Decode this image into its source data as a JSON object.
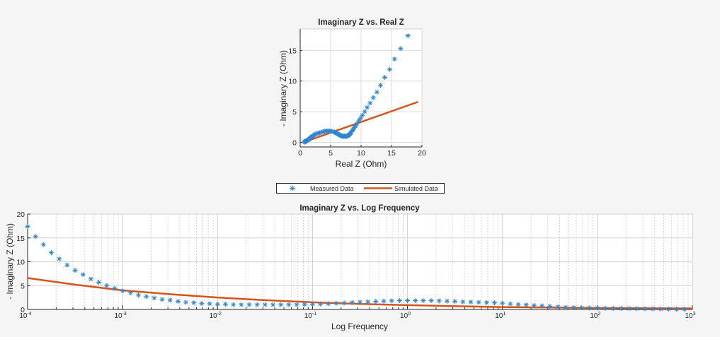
{
  "colors": {
    "measured": "#2f86d3",
    "simulated": "#d95319",
    "background": "#f5f5f5"
  },
  "legend": {
    "placement": "between-plots",
    "items": [
      {
        "label": "Measured Data",
        "marker": "asterisk"
      },
      {
        "label": "Simulated Data",
        "marker": "line"
      }
    ]
  },
  "chart_data": [
    {
      "type": "scatter",
      "title": "Imaginary Z vs. Real Z",
      "xlabel": "Real Z (Ohm)",
      "ylabel": "- Imaginary Z (Ohm)",
      "xlim": [
        0,
        20
      ],
      "ylim": [
        -0.75,
        18.5
      ],
      "xticks": [
        0,
        5,
        10,
        15,
        20
      ],
      "yticks": [
        0,
        5,
        10,
        15
      ],
      "grid": true,
      "series": [
        {
          "name": "Measured Data",
          "style": "asterisk",
          "x": [
            17.7,
            16.5,
            15.5,
            14.7,
            13.9,
            13.2,
            12.6,
            12.0,
            11.5,
            11.0,
            10.6,
            10.2,
            9.9,
            9.6,
            9.3,
            9.1,
            8.9,
            8.7,
            8.6,
            8.4,
            8.3,
            8.2,
            8.1,
            8.0,
            7.9,
            7.8,
            7.7,
            7.6,
            7.5,
            7.4,
            7.3,
            7.2,
            7.1,
            7.0,
            6.9,
            6.8,
            6.7,
            6.6,
            6.5,
            6.35,
            6.2,
            6.05,
            5.9,
            5.75,
            5.6,
            5.4,
            5.2,
            5.0,
            4.8,
            4.6,
            4.4,
            4.2,
            4.0,
            3.8,
            3.6,
            3.4,
            3.2,
            3.0,
            2.8,
            2.6,
            2.4,
            2.25,
            2.1,
            1.95,
            1.8,
            1.7,
            1.6,
            1.5,
            1.4,
            1.3,
            1.2,
            1.1,
            1.05,
            1.0,
            0.97,
            0.94,
            0.91,
            0.88,
            0.85,
            0.82,
            0.79,
            0.76,
            0.73,
            0.7
          ],
          "y": [
            17.4,
            15.3,
            13.6,
            11.9,
            10.6,
            9.3,
            8.2,
            7.3,
            6.4,
            5.7,
            5.0,
            4.4,
            3.9,
            3.5,
            3.0,
            2.7,
            2.4,
            2.1,
            1.95,
            1.7,
            1.5,
            1.4,
            1.25,
            1.2,
            1.1,
            1.1,
            1.0,
            1.0,
            1.0,
            1.0,
            1.0,
            1.0,
            1.0,
            1.0,
            1.0,
            1.05,
            1.1,
            1.15,
            1.2,
            1.3,
            1.35,
            1.45,
            1.55,
            1.6,
            1.7,
            1.75,
            1.8,
            1.85,
            1.85,
            1.85,
            1.85,
            1.85,
            1.8,
            1.75,
            1.7,
            1.6,
            1.55,
            1.5,
            1.45,
            1.4,
            1.3,
            1.15,
            1.05,
            0.95,
            0.85,
            0.75,
            0.65,
            0.55,
            0.45,
            0.4,
            0.35,
            0.3,
            0.28,
            0.25,
            0.22,
            0.2,
            0.18,
            0.16,
            0.14,
            0.12,
            0.1,
            0.08,
            0.05,
            0.03
          ]
        },
        {
          "name": "Simulated Data",
          "style": "line",
          "x": [
            19.36,
            15.36,
            11.93,
            9.64,
            7.64,
            6.07,
            4.79,
            3.79,
            3.07,
            2.44,
            1.93,
            1.64,
            1.36,
            1.21,
            1.07
          ],
          "y": [
            6.6,
            5.2,
            4.0,
            3.2,
            2.5,
            1.95,
            1.5,
            1.15,
            0.9,
            0.68,
            0.5,
            0.4,
            0.3,
            0.25,
            0.2
          ]
        }
      ]
    },
    {
      "type": "scatter",
      "title": "Imaginary Z vs. Log Frequency",
      "xlabel": "Log Frequency",
      "ylabel": "- Imaginary Z (Ohm)",
      "xscale": "log",
      "xlim": [
        0.0001,
        1000
      ],
      "ylim": [
        0,
        20
      ],
      "xticks": [
        "10^-4",
        "10^-3",
        "10^-2",
        "10^-1",
        "10^0",
        "10^1",
        "10^2",
        "10^3"
      ],
      "yticks": [
        0,
        5,
        10,
        15,
        20
      ],
      "grid": true,
      "series": [
        {
          "name": "Measured Data",
          "style": "asterisk",
          "x_log10_start": -4,
          "points_per_decade": 12,
          "y": [
            17.4,
            15.3,
            13.6,
            11.9,
            10.6,
            9.3,
            8.2,
            7.3,
            6.4,
            5.7,
            5.0,
            4.4,
            3.9,
            3.5,
            3.0,
            2.7,
            2.4,
            2.1,
            1.95,
            1.7,
            1.5,
            1.4,
            1.25,
            1.2,
            1.1,
            1.1,
            1.0,
            1.0,
            1.0,
            1.0,
            1.0,
            1.0,
            1.0,
            1.0,
            1.0,
            1.05,
            1.1,
            1.15,
            1.2,
            1.3,
            1.35,
            1.45,
            1.55,
            1.6,
            1.7,
            1.75,
            1.8,
            1.85,
            1.85,
            1.85,
            1.85,
            1.85,
            1.8,
            1.75,
            1.7,
            1.6,
            1.55,
            1.5,
            1.45,
            1.4,
            1.3,
            1.15,
            1.05,
            0.95,
            0.85,
            0.75,
            0.65,
            0.55,
            0.45,
            0.4,
            0.35,
            0.3,
            0.28,
            0.25,
            0.22,
            0.2,
            0.18,
            0.16,
            0.14,
            0.12,
            0.1,
            0.08,
            0.05,
            0.03
          ]
        },
        {
          "name": "Simulated Data",
          "style": "line",
          "x": [
            0.0001,
            0.000316,
            0.001,
            0.00316,
            0.01,
            0.0316,
            0.1,
            0.316,
            1,
            3.16,
            10,
            31.6,
            100,
            316,
            1000
          ],
          "y": [
            6.6,
            5.2,
            4.0,
            3.2,
            2.5,
            1.95,
            1.5,
            1.15,
            0.9,
            0.68,
            0.5,
            0.4,
            0.3,
            0.25,
            0.2
          ]
        }
      ]
    }
  ]
}
